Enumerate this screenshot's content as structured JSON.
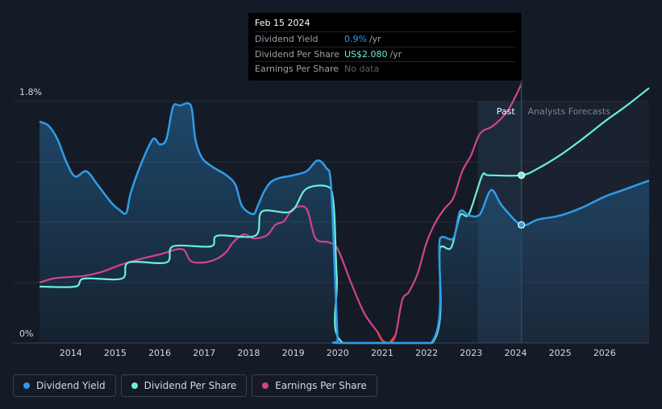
{
  "colors": {
    "dividend_yield": "#2f9ce8",
    "dividend_per_share": "#6cf0d8",
    "earnings_per_share": "#d0448f",
    "eps_negative": "#e8443a",
    "background": "#151b26"
  },
  "tooltip": {
    "date": "Feb 15 2024",
    "rows": [
      {
        "label": "Dividend Yield",
        "value": "0.9%",
        "unit": "/yr"
      },
      {
        "label": "Dividend Per Share",
        "value": "US$2.080",
        "unit": "/yr"
      },
      {
        "label": "Earnings Per Share",
        "value": "No data",
        "unit": ""
      }
    ]
  },
  "legend": [
    {
      "label": "Dividend Yield"
    },
    {
      "label": "Dividend Per Share"
    },
    {
      "label": "Earnings Per Share"
    }
  ],
  "chart_data": {
    "type": "line",
    "title": "",
    "xlabel": "",
    "ylabel": "",
    "ylim": [
      0,
      1.8
    ],
    "xlim": [
      2012.7,
      2027.0
    ],
    "y_tick_labels": [
      "1.8%",
      "0%"
    ],
    "x_ticks": [
      2014,
      2015,
      2016,
      2017,
      2018,
      2019,
      2020,
      2021,
      2022,
      2023,
      2024,
      2025,
      2026
    ],
    "x_tick_labels": [
      "2014",
      "2015",
      "2016",
      "2017",
      "2018",
      "2019",
      "2020",
      "2021",
      "2022",
      "2023",
      "2024",
      "2025",
      "2026"
    ],
    "past_label": "Past",
    "forecast_label": "Analysts Forecasts",
    "past_region_start": 2023.15,
    "forecast_start": 2024.13,
    "grid": true,
    "series": [
      {
        "name": "Dividend Yield",
        "axis": "percent",
        "x": [
          2013.3,
          2013.5,
          2013.7,
          2013.9,
          2014.1,
          2014.35,
          2014.6,
          2014.9,
          2015.1,
          2015.25,
          2015.35,
          2015.6,
          2015.85,
          2016.0,
          2016.15,
          2016.3,
          2016.45,
          2016.7,
          2016.8,
          2016.95,
          2017.2,
          2017.5,
          2017.7,
          2017.85,
          2018.1,
          2018.2,
          2018.35,
          2018.5,
          2018.7,
          2019.0,
          2019.3,
          2019.55,
          2019.75,
          2019.85,
          2020.0,
          2020.05,
          2022.1,
          2022.3,
          2022.6,
          2022.75,
          2022.95,
          2023.2,
          2023.45,
          2023.7,
          2024.13,
          2024.5,
          2025.0,
          2025.5,
          2026.0,
          2026.5,
          2027.0
        ],
        "values": [
          1.65,
          1.62,
          1.52,
          1.35,
          1.24,
          1.28,
          1.18,
          1.05,
          0.99,
          0.97,
          1.12,
          1.35,
          1.52,
          1.48,
          1.52,
          1.76,
          1.77,
          1.77,
          1.52,
          1.38,
          1.31,
          1.25,
          1.18,
          1.02,
          0.96,
          1.02,
          1.13,
          1.2,
          1.23,
          1.25,
          1.28,
          1.36,
          1.3,
          1.18,
          0.02,
          0.0,
          0.0,
          0.78,
          0.78,
          0.98,
          0.95,
          0.96,
          1.14,
          1.02,
          0.88,
          0.92,
          0.95,
          1.01,
          1.09,
          1.15,
          1.21
        ]
      },
      {
        "name": "Dividend Per Share",
        "axis": "normalized",
        "x": [
          2013.3,
          2014.1,
          2014.3,
          2015.15,
          2015.3,
          2016.15,
          2016.3,
          2017.15,
          2017.3,
          2018.15,
          2018.3,
          2018.95,
          2019.3,
          2019.85,
          2019.98,
          2020.12,
          2022.12,
          2022.3,
          2022.55,
          2022.75,
          2022.95,
          2023.25,
          2023.4,
          2024.13,
          2024.5,
          2025.0,
          2025.5,
          2026.0,
          2026.5,
          2027.0
        ],
        "values": [
          0.42,
          0.42,
          0.48,
          0.48,
          0.6,
          0.6,
          0.72,
          0.72,
          0.8,
          0.8,
          0.98,
          0.98,
          1.15,
          1.15,
          0.5,
          0.0,
          0.0,
          0.71,
          0.71,
          0.95,
          0.96,
          1.25,
          1.25,
          1.25,
          1.3,
          1.4,
          1.52,
          1.65,
          1.77,
          1.9
        ]
      },
      {
        "name": "Earnings Per Share",
        "axis": "normalized",
        "x": [
          2013.3,
          2013.6,
          2013.9,
          2014.3,
          2014.7,
          2015.1,
          2015.5,
          2016.0,
          2016.5,
          2016.7,
          2017.0,
          2017.3,
          2017.5,
          2017.65,
          2017.9,
          2018.1,
          2018.4,
          2018.6,
          2018.8,
          2019.0,
          2019.3,
          2019.5,
          2019.8,
          2020.0,
          2020.3,
          2020.6,
          2020.9,
          2021.0,
          2021.15,
          2021.3,
          2021.45,
          2021.6,
          2021.8,
          2022.0,
          2022.2,
          2022.4,
          2022.6,
          2022.8,
          2023.0,
          2023.2,
          2023.5,
          2023.8,
          2024.0,
          2024.13
        ],
        "values": [
          0.45,
          0.48,
          0.49,
          0.5,
          0.53,
          0.58,
          0.62,
          0.66,
          0.7,
          0.61,
          0.6,
          0.63,
          0.68,
          0.75,
          0.81,
          0.78,
          0.8,
          0.88,
          0.91,
          1.0,
          1.0,
          0.78,
          0.75,
          0.7,
          0.45,
          0.22,
          0.08,
          0.02,
          0.0,
          0.06,
          0.32,
          0.38,
          0.52,
          0.75,
          0.9,
          1.0,
          1.08,
          1.28,
          1.4,
          1.56,
          1.62,
          1.72,
          1.84,
          1.93
        ]
      }
    ]
  }
}
